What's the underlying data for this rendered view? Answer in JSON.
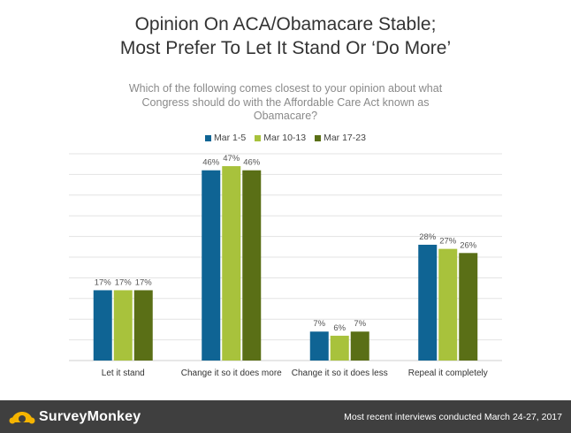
{
  "header": {
    "title_line1": "Opinion On ACA/Obamacare Stable;",
    "title_line2": "Most Prefer To Let It Stand Or ‘Do More’",
    "subtitle_line1": "Which of the following comes closest to your opinion about what",
    "subtitle_line2": "Congress should do with the Affordable Care Act known as",
    "subtitle_line3": "Obamacare?"
  },
  "colors": {
    "series1": "#0f6494",
    "series2": "#a8c23c",
    "series3": "#5a6f16",
    "grid": "#e3e3e3",
    "footer_bg": "#3f3f3f",
    "logo_accent": "#f5b400"
  },
  "chart_data": {
    "type": "bar",
    "title": "Opinion On ACA/Obamacare Stable; Most Prefer To Let It Stand Or ‘Do More’",
    "subtitle": "Which of the following comes closest to your opinion about what Congress should do with the Affordable Care Act known as Obamacare?",
    "categories": [
      "Let it stand",
      "Change it so it does more",
      "Change it so it does less",
      "Repeal it completely"
    ],
    "series": [
      {
        "name": "Mar 1-5",
        "values": [
          17,
          46,
          7,
          28
        ],
        "labels": [
          "17%",
          "46%",
          "7%",
          "28%"
        ]
      },
      {
        "name": "Mar 10-13",
        "values": [
          17,
          47,
          6,
          27
        ],
        "labels": [
          "17%",
          "47%",
          "6%",
          "27%"
        ]
      },
      {
        "name": "Mar 17-23",
        "values": [
          17,
          46,
          7,
          26
        ],
        "labels": [
          "17%",
          "46%",
          "7%",
          "26%"
        ]
      }
    ],
    "ylim": [
      0,
      50
    ],
    "grid": true,
    "legend": "top"
  },
  "footer": {
    "logo_text": "SurveyMonkey",
    "logo_icon": "surveymonkey-logo-icon",
    "note": "Most recent interviews conducted March 24-27, 2017"
  }
}
